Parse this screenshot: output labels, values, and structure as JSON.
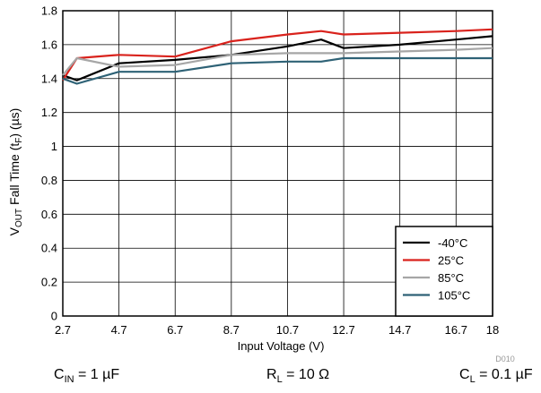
{
  "chart_data": {
    "type": "line",
    "xlabel": "Input Voltage (V)",
    "ylabel": {
      "prefix": "V",
      "prefix_sub": "OUT",
      "middle": " Fall Time (t",
      "mid_sub": "F",
      "suffix": ")  (µs)"
    },
    "xlim": [
      2.7,
      18
    ],
    "ylim": [
      0,
      1.8
    ],
    "x_ticks": [
      2.7,
      4.7,
      6.7,
      8.7,
      10.7,
      12.7,
      14.7,
      16.7,
      18
    ],
    "x_tick_labels": [
      "2.7",
      "4.7",
      "6.7",
      "8.7",
      "10.7",
      "12.7",
      "14.7",
      "16.7",
      "18"
    ],
    "y_ticks": [
      0,
      0.2,
      0.4,
      0.6,
      0.8,
      1,
      1.2,
      1.4,
      1.6,
      1.8
    ],
    "y_tick_labels": [
      "0",
      "0.2",
      "0.4",
      "0.6",
      "0.8",
      "1",
      "1.2",
      "1.4",
      "1.6",
      "1.8"
    ],
    "grid": true,
    "legend_position": "bottom-right",
    "series": [
      {
        "name": "-40°C",
        "color": "#000000",
        "x": [
          2.7,
          3.2,
          4.7,
          6.7,
          8.7,
          10.7,
          11.9,
          12.7,
          14.7,
          16.7,
          18
        ],
        "y": [
          1.42,
          1.39,
          1.49,
          1.51,
          1.54,
          1.59,
          1.63,
          1.58,
          1.6,
          1.63,
          1.65
        ]
      },
      {
        "name": "25°C",
        "color": "#d9221c",
        "x": [
          2.7,
          3.2,
          4.7,
          6.7,
          8.7,
          10.7,
          11.9,
          12.7,
          14.7,
          16.7,
          18
        ],
        "y": [
          1.39,
          1.52,
          1.54,
          1.53,
          1.62,
          1.66,
          1.68,
          1.66,
          1.67,
          1.68,
          1.69
        ]
      },
      {
        "name": "85°C",
        "color": "#a6a6a6",
        "x": [
          2.7,
          3.2,
          4.7,
          6.7,
          8.7,
          10.7,
          12.7,
          14.7,
          16.7,
          18
        ],
        "y": [
          1.42,
          1.52,
          1.47,
          1.48,
          1.54,
          1.55,
          1.55,
          1.56,
          1.57,
          1.58
        ]
      },
      {
        "name": "105°C",
        "color": "#2e6276",
        "x": [
          2.7,
          3.2,
          4.7,
          6.7,
          8.7,
          10.7,
          11.9,
          12.7,
          14.7,
          16.7,
          18
        ],
        "y": [
          1.4,
          1.37,
          1.44,
          1.44,
          1.49,
          1.5,
          1.5,
          1.52,
          1.52,
          1.52,
          1.52
        ]
      }
    ],
    "figure_id": "D010"
  },
  "conditions": {
    "cin": {
      "sym": "C",
      "sub": "IN",
      "val": " = 1 µF"
    },
    "rl": {
      "sym": "R",
      "sub": "L",
      "val": " = 10 Ω"
    },
    "cl": {
      "sym": "C",
      "sub": "L",
      "val": " = 0.1 µF"
    }
  }
}
